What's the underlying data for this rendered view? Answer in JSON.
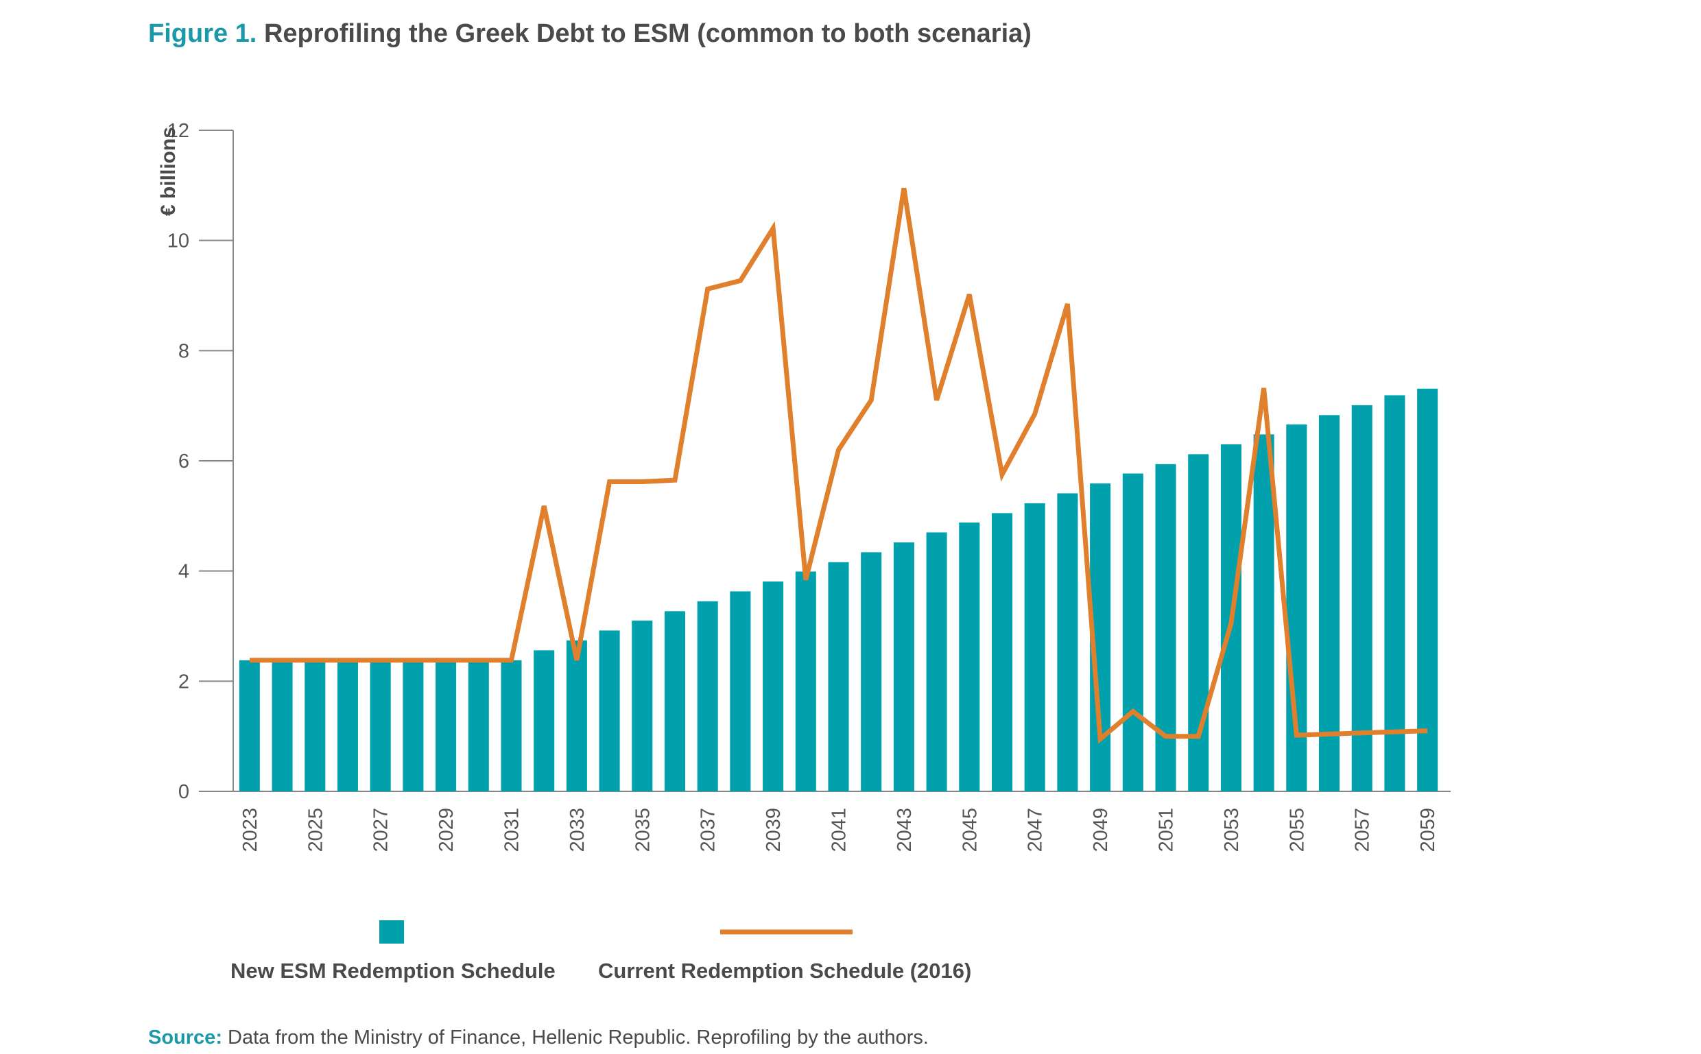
{
  "figure": {
    "label": "Figure 1.",
    "title": "Reprofiling the Greek Debt to ESM (common to both scenaria)",
    "source_label": "Source:",
    "source_text": "Data from the Ministry of Finance, Hellenic Republic. Reprofiling by the authors."
  },
  "colors": {
    "bars": "#00a1ad",
    "line": "#e07f2c",
    "axis": "#888888",
    "title_accent": "#1a9aa8"
  },
  "chart_data": {
    "type": "bar",
    "ylabel": "€ billions",
    "ylim": [
      0,
      12
    ],
    "yticks": [
      "0",
      "2",
      "4",
      "6",
      "8",
      "10",
      "12"
    ],
    "x": [
      2023,
      2024,
      2025,
      2026,
      2027,
      2028,
      2029,
      2030,
      2031,
      2032,
      2033,
      2034,
      2035,
      2036,
      2037,
      2038,
      2039,
      2040,
      2041,
      2042,
      2043,
      2044,
      2045,
      2046,
      2047,
      2048,
      2049,
      2050,
      2051,
      2052,
      2053,
      2054,
      2055,
      2056,
      2057,
      2058,
      2059
    ],
    "xtick_labels": [
      "2023",
      "2025",
      "2027",
      "2029",
      "2031",
      "2033",
      "2035",
      "2037",
      "2039",
      "2041",
      "2043",
      "2045",
      "2047",
      "2049",
      "2051",
      "2053",
      "2055",
      "2057",
      "2059"
    ],
    "legend_position": "bottom",
    "series": [
      {
        "name": "New ESM Redemption Schedule",
        "type": "bar",
        "values": [
          2.38,
          2.38,
          2.38,
          2.38,
          2.38,
          2.38,
          2.38,
          2.38,
          2.38,
          2.56,
          2.74,
          2.92,
          3.1,
          3.27,
          3.45,
          3.63,
          3.81,
          3.99,
          4.16,
          4.34,
          4.52,
          4.7,
          4.88,
          5.05,
          5.23,
          5.41,
          5.59,
          5.77,
          5.94,
          6.12,
          6.3,
          6.48,
          6.66,
          6.83,
          7.01,
          7.19,
          7.31
        ]
      },
      {
        "name": "Current Redemption Schedule (2016)",
        "type": "line",
        "values": [
          2.38,
          2.38,
          2.38,
          2.38,
          2.38,
          2.38,
          2.38,
          2.38,
          2.38,
          5.18,
          2.38,
          5.62,
          5.62,
          5.65,
          9.12,
          9.27,
          10.22,
          3.84,
          6.2,
          7.1,
          10.95,
          7.1,
          9.02,
          5.75,
          6.85,
          8.85,
          0.95,
          1.45,
          1.0,
          1.0,
          3.05,
          7.32,
          1.02,
          1.04,
          1.06,
          1.08,
          1.1
        ]
      }
    ]
  }
}
